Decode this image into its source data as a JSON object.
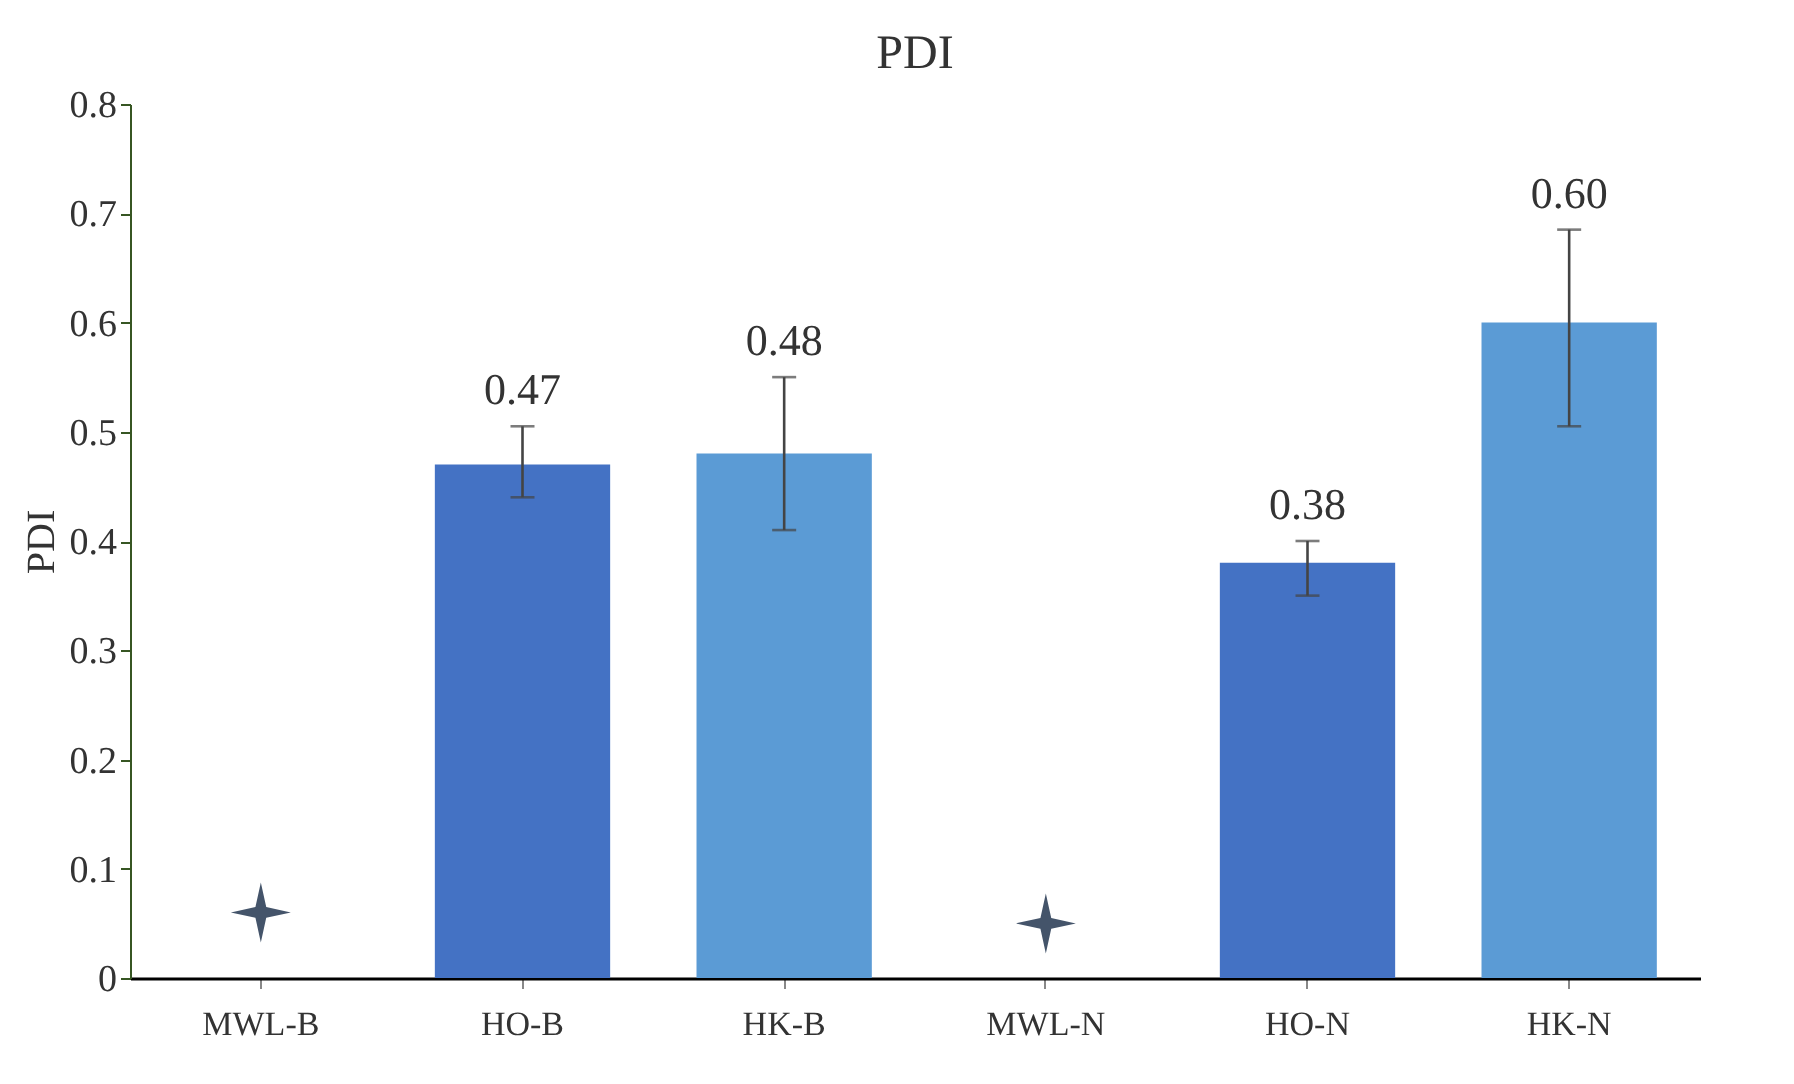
{
  "chart_data": {
    "type": "bar",
    "title": "PDI",
    "ylabel": "PDI",
    "categories": [
      "MWL-B",
      "HO-B",
      "HK-B",
      "MWL-N",
      "HO-N",
      "HK-N"
    ],
    "series": [
      {
        "colors": [
          "#4472c4",
          "#4472c4",
          "#5b9bd5",
          "#4472c4",
          "#4472c4",
          "#5b9bd5"
        ],
        "values": [
          null,
          0.47,
          0.48,
          null,
          0.38,
          0.6
        ],
        "value_labels": [
          null,
          "0.47",
          "0.48",
          null,
          "0.38",
          "0.60"
        ],
        "errors": [
          null,
          [
            0.44,
            0.505
          ],
          [
            0.41,
            0.55
          ],
          null,
          [
            0.35,
            0.4
          ],
          [
            0.505,
            0.685
          ]
        ]
      },
      {
        "type": "scatter",
        "color": "#44546a",
        "marker": "star",
        "values": [
          0.06,
          null,
          null,
          0.05,
          null,
          null
        ]
      }
    ],
    "ylim": [
      0,
      0.8
    ],
    "yticks": [
      0,
      0.1,
      0.2,
      0.3,
      0.4,
      0.5,
      0.6,
      0.7,
      0.8
    ],
    "grid": false
  }
}
